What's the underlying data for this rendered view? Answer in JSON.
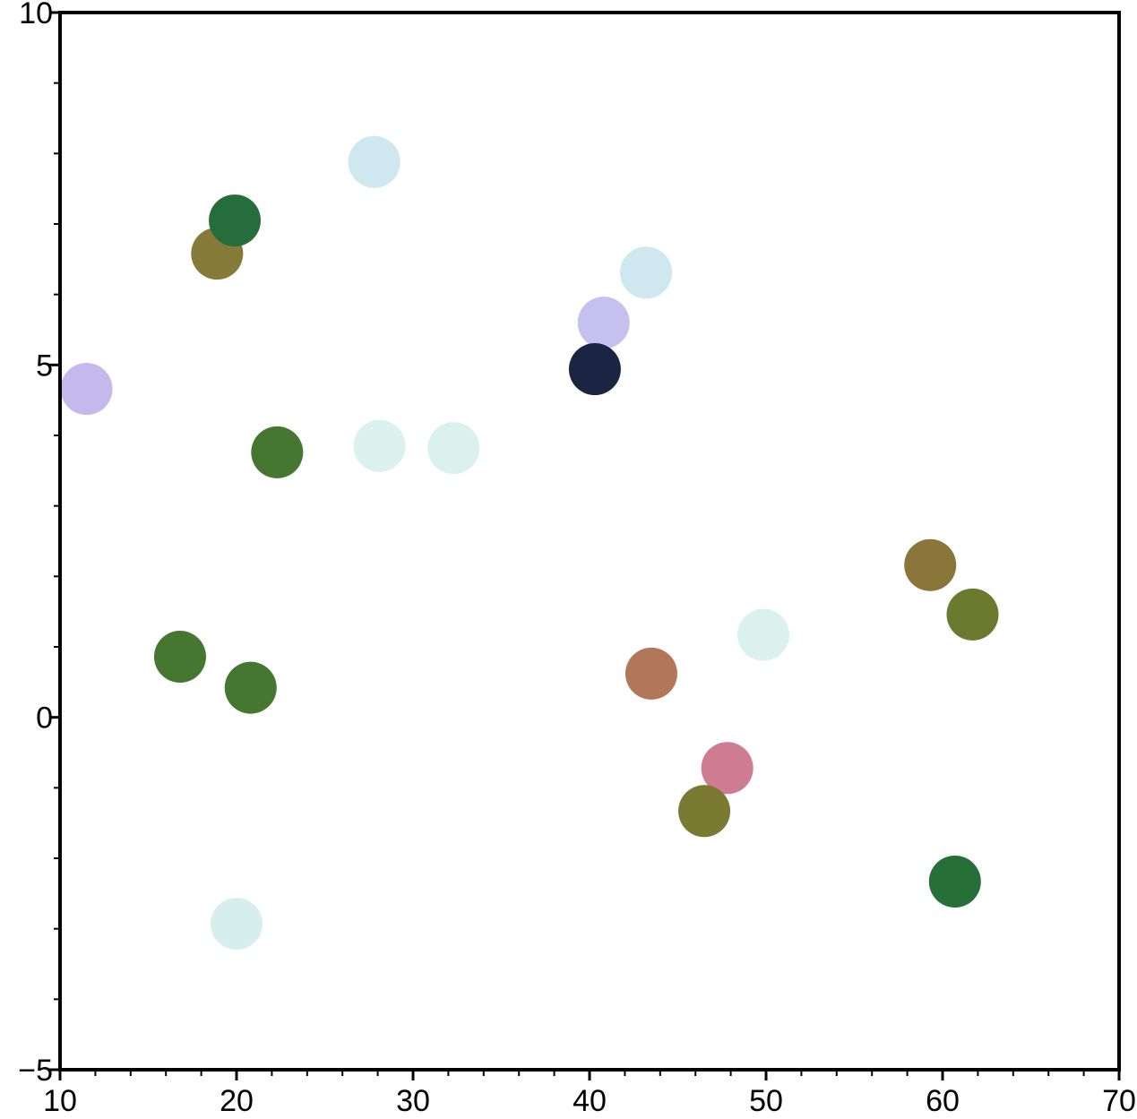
{
  "chart_data": {
    "type": "scatter",
    "x": [
      11.5,
      18.9,
      19.9,
      27.8,
      22.3,
      28.1,
      32.3,
      40.8,
      43.2,
      40.3,
      16.8,
      20.8,
      20.0,
      43.5,
      49.85,
      47.8,
      46.5,
      59.3,
      61.7,
      60.7
    ],
    "values": [
      4.66,
      6.58,
      7.05,
      7.88,
      3.76,
      3.85,
      3.82,
      5.6,
      6.31,
      4.94,
      0.86,
      0.42,
      -2.93,
      0.62,
      1.17,
      -0.72,
      -1.33,
      2.16,
      1.46,
      -2.33
    ],
    "colors": [
      "#c5b8ec",
      "#857a37",
      "#256e3b",
      "#cfe7ef",
      "#467730",
      "#daf1ed",
      "#daf1ed",
      "#c5c0ee",
      "#cfe7ef",
      "#1c2444",
      "#467730",
      "#467730",
      "#d6efed",
      "#b27759",
      "#daf1ed",
      "#cf7c91",
      "#7a7a33",
      "#8a7639",
      "#6b7a2e",
      "#276f38"
    ],
    "xlim": [
      10,
      70
    ],
    "ylim": [
      -5,
      10
    ],
    "xticks": [
      10,
      20,
      30,
      40,
      50,
      60,
      70
    ],
    "yticks": [
      {
        "value": -5,
        "label": "−5"
      },
      0,
      5,
      10
    ],
    "xminorticks": [
      12,
      14,
      16,
      18,
      22,
      24,
      26,
      28,
      32,
      34,
      36,
      38,
      42,
      44,
      46,
      48,
      52,
      54,
      56,
      58,
      62,
      64,
      66,
      68
    ],
    "yminorticks": [
      -4,
      -3,
      -2,
      -1,
      1,
      2,
      3,
      4,
      6,
      7,
      8,
      9
    ],
    "grid": false
  }
}
